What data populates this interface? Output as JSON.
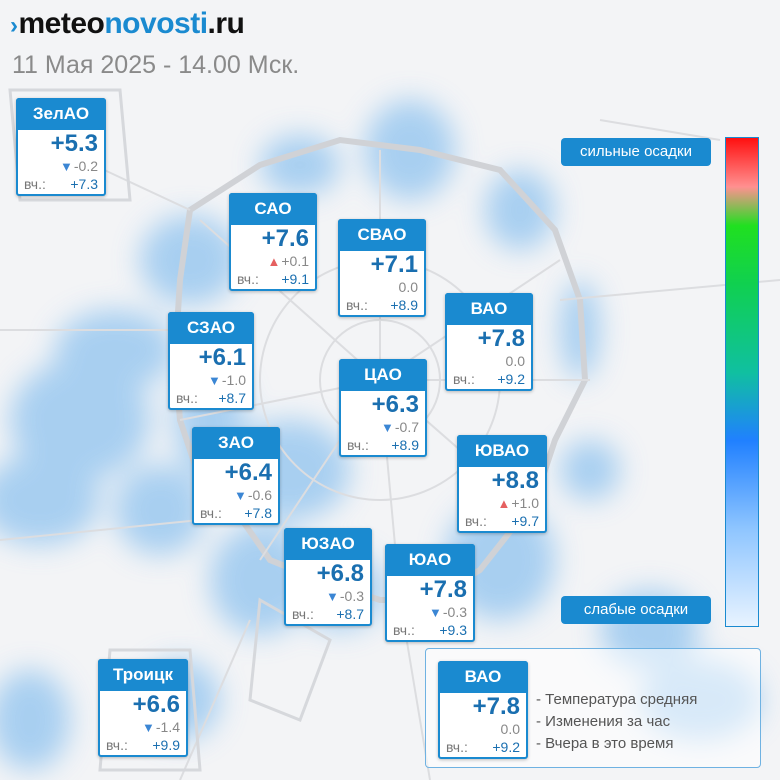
{
  "header": {
    "logo_prefix": "meteo",
    "logo_highlight": "novosti",
    "logo_suffix": ".ru",
    "datetime": "11 Мая 2025 - 14.00 Мск."
  },
  "districts": [
    {
      "name": "ЗелАО",
      "temp": "+5.3",
      "change": "-0.2",
      "trend": "down",
      "yesterday_label": "вч.:",
      "yesterday": "+7.3"
    },
    {
      "name": "САО",
      "temp": "+7.6",
      "change": "+0.1",
      "trend": "up",
      "yesterday_label": "вч.:",
      "yesterday": "+9.1"
    },
    {
      "name": "СВАО",
      "temp": "+7.1",
      "change": "0.0",
      "trend": "none",
      "yesterday_label": "вч.:",
      "yesterday": "+8.9"
    },
    {
      "name": "ВАО",
      "temp": "+7.8",
      "change": "0.0",
      "trend": "none",
      "yesterday_label": "вч.:",
      "yesterday": "+9.2"
    },
    {
      "name": "СЗАО",
      "temp": "+6.1",
      "change": "-1.0",
      "trend": "down",
      "yesterday_label": "вч.:",
      "yesterday": "+8.7"
    },
    {
      "name": "ЦАО",
      "temp": "+6.3",
      "change": "-0.7",
      "trend": "down",
      "yesterday_label": "вч.:",
      "yesterday": "+8.9"
    },
    {
      "name": "ЗАО",
      "temp": "+6.4",
      "change": "-0.6",
      "trend": "down",
      "yesterday_label": "вч.:",
      "yesterday": "+7.8"
    },
    {
      "name": "ЮВАО",
      "temp": "+8.8",
      "change": "+1.0",
      "trend": "up",
      "yesterday_label": "вч.:",
      "yesterday": "+9.7"
    },
    {
      "name": "ЮЗАО",
      "temp": "+6.8",
      "change": "-0.3",
      "trend": "down",
      "yesterday_label": "вч.:",
      "yesterday": "+8.7"
    },
    {
      "name": "ЮАО",
      "temp": "+7.8",
      "change": "-0.3",
      "trend": "down",
      "yesterday_label": "вч.:",
      "yesterday": "+9.3"
    },
    {
      "name": "Троицк",
      "temp": "+6.6",
      "change": "-1.4",
      "trend": "down",
      "yesterday_label": "вч.:",
      "yesterday": "+9.9"
    }
  ],
  "precip_scale": {
    "high_label": "сильные осадки",
    "low_label": "слабые осадки",
    "colors": [
      "#ff1010",
      "#ff9090",
      "#20e020",
      "#10c0a0",
      "#2080ff",
      "#8ec5ff",
      "#e8f3ff"
    ]
  },
  "legend": {
    "example": {
      "name": "ВАО",
      "temp": "+7.8",
      "change": "0.0",
      "trend": "none",
      "yesterday_label": "вч.:",
      "yesterday": "+9.2"
    },
    "lines": [
      "- Температура средняя",
      "- Изменения за час",
      "- Вчера в это время"
    ]
  },
  "colors": {
    "accent": "#1a8ad0",
    "up": "#e56060",
    "down": "#3b86d4",
    "precip": "#8fc3ef"
  }
}
